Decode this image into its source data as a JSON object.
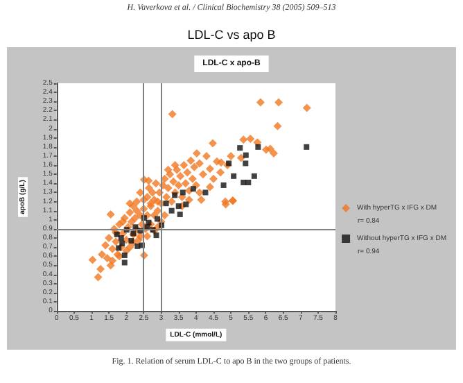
{
  "chart_data": {
    "type": "scatter",
    "title": "LDL-C vs apo B",
    "subtitle": "LDL-C x apo-B",
    "xlabel": "LDL-C (mmol/L)",
    "ylabel": "apoB (g/L)",
    "annotations": [
      "H. Vaverkova et al. / Clinical Biochemistry 38 (2005) 509–513",
      "r= 0.84",
      "r= 0.94",
      "Fig. 1. Relation of serum LDL-C to apo B in the two groups of patients."
    ],
    "xlim": [
      0,
      8
    ],
    "xticks": [
      0,
      0.5,
      1,
      1.5,
      2,
      2.5,
      3,
      3.5,
      4,
      4.5,
      5,
      5.5,
      6,
      6.5,
      7,
      7.5,
      8
    ],
    "ylim": [
      0,
      2.5
    ],
    "yticks": [
      0,
      0.1,
      0.2,
      0.3,
      0.4,
      0.5,
      0.6,
      0.7,
      0.8,
      0.9,
      1,
      1.1,
      1.2,
      1.3,
      1.4,
      1.5,
      1.6,
      1.7,
      1.8,
      1.9,
      2,
      2.1,
      2.2,
      2.3,
      2.4,
      2.5
    ],
    "grid": false,
    "legend": "right",
    "ref_lines": [
      {
        "axis": "x",
        "value": 2.5,
        "color": "#808080"
      },
      {
        "axis": "x",
        "value": 3,
        "color": "#808080"
      },
      {
        "axis": "y",
        "value": 0.9,
        "color": "#808080"
      }
    ],
    "series": [
      {
        "name": "With hyperTG x IFG x DM",
        "color": "#f07820",
        "marker": "diamond",
        "x": [
          3.32,
          4.48,
          4.02,
          1.19,
          1.03,
          1.55,
          1.26,
          1.55,
          2.51,
          2.51,
          2.64,
          4.84,
          5.06,
          4.15,
          4.72,
          5.85,
          6.37,
          7.18,
          6.34,
          5.36,
          5.56,
          5.76,
          6.01,
          6.13,
          6.23,
          5.29,
          4.85,
          5.05,
          1.3,
          1.4,
          1.45,
          1.5,
          1.6,
          1.65,
          1.7,
          1.75,
          1.8,
          1.85,
          1.9,
          1.95,
          2.0,
          2.05,
          2.1,
          2.1,
          2.15,
          2.2,
          2.2,
          2.25,
          2.3,
          2.3,
          2.35,
          2.4,
          2.4,
          2.45,
          2.5,
          2.55,
          2.6,
          2.6,
          2.65,
          2.7,
          2.7,
          2.75,
          2.8,
          2.8,
          2.85,
          2.9,
          2.9,
          2.95,
          3.0,
          3.05,
          3.1,
          3.1,
          3.15,
          3.2,
          3.25,
          3.3,
          3.35,
          3.4,
          3.45,
          3.5,
          3.55,
          3.6,
          3.65,
          3.7,
          3.75,
          3.8,
          3.85,
          3.9,
          3.95,
          4.0,
          4.1,
          4.2,
          4.3,
          4.4,
          4.5,
          4.6,
          4.7,
          4.9,
          5.0,
          1.6,
          1.8,
          2.0,
          2.2,
          2.4,
          2.6,
          2.8,
          3.0,
          1.7,
          1.9,
          2.1,
          2.3,
          2.5,
          2.7,
          2.9,
          3.2,
          3.4,
          3.6,
          3.8,
          4.1,
          4.4
        ],
        "values": [
          2.16,
          1.84,
          1.73,
          0.37,
          0.56,
          0.5,
          0.46,
          1.06,
          0.61,
          1.44,
          1.43,
          1.2,
          1.21,
          1.22,
          1.63,
          2.29,
          2.29,
          2.23,
          2.03,
          1.88,
          1.89,
          1.85,
          1.77,
          1.78,
          1.73,
          1.68,
          1.17,
          1.21,
          0.62,
          0.72,
          0.58,
          0.8,
          0.68,
          0.9,
          0.76,
          0.62,
          0.95,
          0.7,
          0.85,
          1.02,
          0.78,
          0.92,
          1.08,
          0.7,
          0.98,
          0.84,
          1.15,
          1.02,
          0.9,
          1.2,
          0.78,
          1.05,
          1.3,
          0.95,
          1.12,
          0.9,
          1.25,
          1.05,
          1.35,
          0.95,
          1.15,
          1.3,
          1.05,
          1.22,
          1.4,
          1.1,
          0.92,
          1.3,
          1.18,
          1.38,
          1.05,
          1.45,
          1.25,
          1.35,
          1.5,
          1.2,
          1.42,
          1.3,
          1.55,
          1.38,
          1.48,
          1.25,
          1.6,
          1.4,
          1.52,
          1.32,
          1.65,
          1.45,
          1.58,
          1.38,
          1.62,
          1.5,
          1.7,
          1.56,
          1.45,
          1.64,
          1.52,
          1.6,
          1.7,
          0.55,
          0.6,
          0.66,
          0.75,
          0.82,
          0.82,
          0.88,
          0.98,
          0.86,
          0.98,
          1.18,
          1.1,
          1.22,
          1.18,
          1.2,
          1.55,
          1.6,
          1.15,
          1.22,
          1.3,
          1.36
        ]
      },
      {
        "name": "Without hyperTG x IFG x DM",
        "color": "#111111",
        "marker": "square",
        "x": [
          5.26,
          5.78,
          7.17,
          4.94,
          5.43,
          5.42,
          5.08,
          4.79,
          5.36,
          5.5,
          5.67,
          3.92,
          4.27,
          3.71,
          3.54,
          3.14,
          3.39,
          3.62,
          2.89,
          2.64,
          2.51,
          2.26,
          2.01,
          1.73,
          1.88,
          1.78,
          1.95,
          1.95,
          2.14,
          2.32,
          2.45,
          2.76,
          2.86,
          3.01,
          2.2,
          2.4,
          2.6,
          3.3,
          3.5,
          1.85
        ],
        "values": [
          1.79,
          1.8,
          1.8,
          1.62,
          1.71,
          1.62,
          1.48,
          1.38,
          1.41,
          1.41,
          1.48,
          1.34,
          1.3,
          1.17,
          1.06,
          1.18,
          1.27,
          1.3,
          1.01,
          0.97,
          1.02,
          0.92,
          0.89,
          0.84,
          0.74,
          0.69,
          0.61,
          0.53,
          0.77,
          0.71,
          0.72,
          0.89,
          0.83,
          0.94,
          0.85,
          0.88,
          0.92,
          1.1,
          1.15,
          0.8
        ]
      }
    ]
  }
}
